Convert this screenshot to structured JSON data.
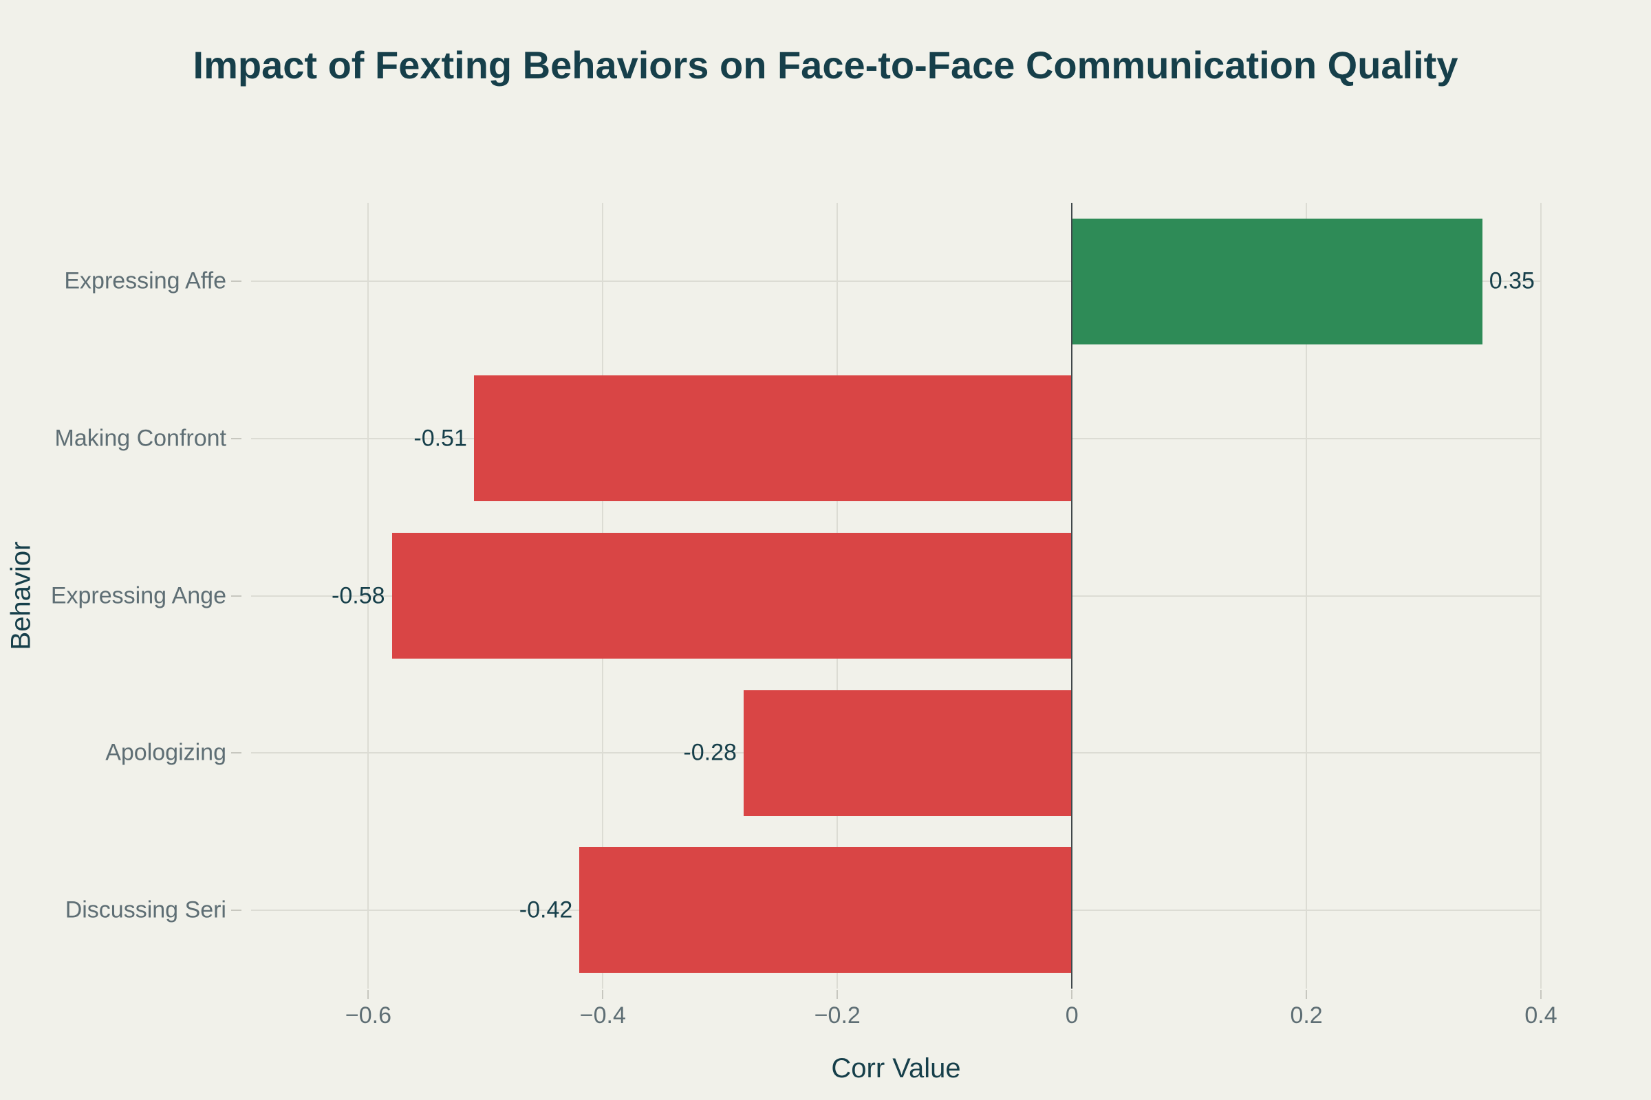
{
  "title": "Impact of Fexting Behaviors on Face-to-Face Communication Quality",
  "chart_data": {
    "type": "bar",
    "orientation": "horizontal",
    "title": "Impact of Fexting Behaviors on Face-to-Face Communication Quality",
    "xlabel": "Corr Value",
    "ylabel": "Behavior",
    "categories": [
      "Expressing Affe",
      "Making Confront",
      "Expressing Ange",
      "Apologizing",
      "Discussing Seri"
    ],
    "values": [
      0.35,
      -0.51,
      -0.58,
      -0.28,
      -0.42
    ],
    "value_labels": [
      "0.35",
      "-0.51",
      "-0.58",
      "-0.28",
      "-0.42"
    ],
    "xlim": [
      -0.7,
      0.4
    ],
    "xticks": [
      -0.6,
      -0.4,
      -0.2,
      0,
      0.2,
      0.4
    ],
    "xtick_labels": [
      "−0.6",
      "−0.4",
      "−0.2",
      "0",
      "0.2",
      "0.4"
    ],
    "grid": true,
    "legend": "none",
    "colors": {
      "positive_bar": "#2E8B57",
      "negative_bar": "#D94545",
      "background": "#F1F1EA",
      "grid_line": "#DCDCD4",
      "zero_line": "#40484B",
      "title_text": "#163F4A",
      "axis_label_text": "#5E6E74",
      "value_label_text": "#163F4A"
    }
  }
}
